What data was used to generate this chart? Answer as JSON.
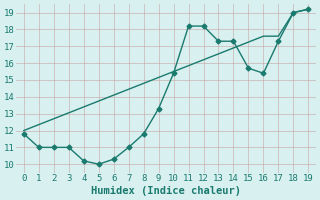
{
  "x": [
    0,
    1,
    2,
    3,
    4,
    5,
    6,
    7,
    8,
    9,
    10,
    11,
    12,
    13,
    14,
    15,
    16,
    17,
    18,
    19
  ],
  "line1": [
    11.8,
    11.0,
    11.0,
    11.0,
    10.2,
    10.0,
    10.3,
    11.0,
    11.8,
    13.3,
    15.4,
    18.2,
    18.2,
    17.3,
    17.3,
    15.7,
    15.4,
    17.3,
    19.0,
    19.2
  ],
  "line2": [
    12.0,
    12.35,
    12.7,
    13.05,
    13.4,
    13.75,
    14.1,
    14.45,
    14.8,
    15.15,
    15.5,
    15.85,
    16.2,
    16.55,
    16.9,
    17.25,
    17.6,
    17.6,
    19.0,
    19.2
  ],
  "line_color": "#1a7a6e",
  "bg_color": "#d8f0f0",
  "grid_color_major": "#c8e8e8",
  "grid_color_minor": "#ddf4f4",
  "xlabel": "Humidex (Indice chaleur)",
  "xlim": [
    -0.5,
    19.5
  ],
  "ylim": [
    9.5,
    19.5
  ],
  "xticks": [
    0,
    1,
    2,
    3,
    4,
    5,
    6,
    7,
    8,
    9,
    10,
    11,
    12,
    13,
    14,
    15,
    16,
    17,
    18,
    19
  ],
  "yticks": [
    10,
    11,
    12,
    13,
    14,
    15,
    16,
    17,
    18,
    19
  ],
  "marker": "D",
  "marker_size": 2.5,
  "linewidth": 1.0,
  "font_color": "#1a7a6e",
  "font_size": 6.5,
  "xlabel_fontsize": 7.5
}
